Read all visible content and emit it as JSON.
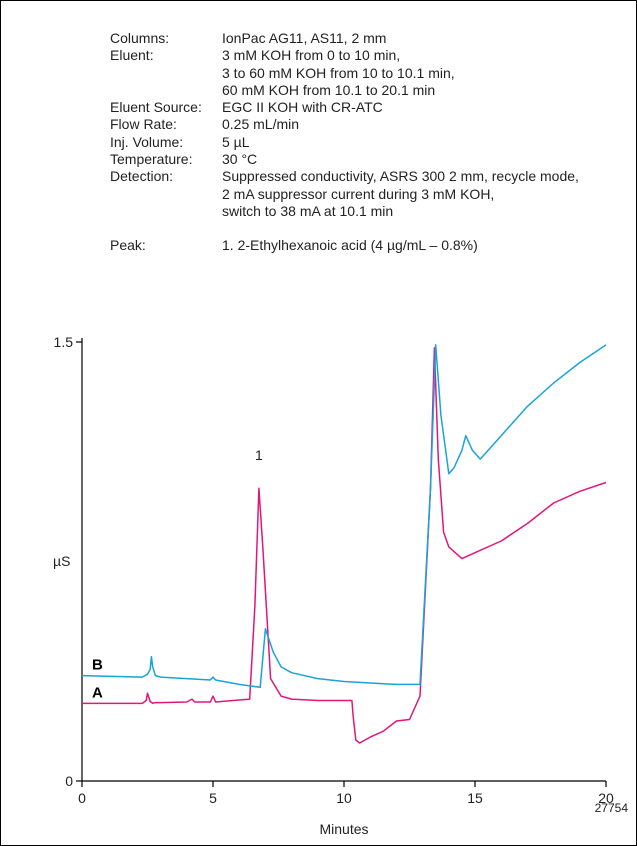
{
  "conditions": [
    {
      "label": "Columns:",
      "lines": [
        "IonPac AG11, AS11, 2 mm"
      ]
    },
    {
      "label": "Eluent:",
      "lines": [
        "3 mM KOH from 0 to 10 min,",
        "3 to 60 mM KOH from 10 to 10.1 min,",
        "60 mM KOH from 10.1 to 20.1 min"
      ]
    },
    {
      "label": "Eluent Source:",
      "lines": [
        "EGC II KOH with CR-ATC"
      ]
    },
    {
      "label": "Flow Rate:",
      "lines": [
        "0.25 mL/min"
      ]
    },
    {
      "label": "Inj. Volume:",
      "lines": [
        "5 µL"
      ]
    },
    {
      "label": "Temperature:",
      "lines": [
        "30 °C"
      ]
    },
    {
      "label": "Detection:",
      "lines": [
        "Suppressed conductivity, ASRS 300 2 mm, recycle mode,",
        "2 mA suppressor current during 3 mM KOH,",
        "switch to 38 mA at 10.1 min"
      ]
    }
  ],
  "peak": {
    "label": "Peak:",
    "text": "1. 2-Ethylhexanoic acid (4 µg/mL – 0.8%)"
  },
  "figure_id": "27754",
  "colors": {
    "trace_A": "#e0177a",
    "trace_B": "#1aa3d8",
    "axis": "#000000"
  },
  "chart_data": {
    "type": "line",
    "xlabel": "Minutes",
    "ylabel": "µS",
    "xlim": [
      0,
      20
    ],
    "ylim": [
      0,
      1.5
    ],
    "x_ticks": [
      "0",
      "5",
      "10",
      "15",
      "20"
    ],
    "y_ticks": [
      "0",
      "1.5"
    ],
    "peak_labels": [
      {
        "text": "1",
        "x": 6.75,
        "y": 1.07
      }
    ],
    "series": [
      {
        "name": "A",
        "color": "#e0177a",
        "x": [
          0,
          2.3,
          2.45,
          2.5,
          2.6,
          2.7,
          2.8,
          3.0,
          4.0,
          4.2,
          4.3,
          4.9,
          5.0,
          5.1,
          6.4,
          6.6,
          6.75,
          6.9,
          7.2,
          7.6,
          8.0,
          9.0,
          10.3,
          10.35,
          10.45,
          10.6,
          11.0,
          11.5,
          12.0,
          12.5,
          12.9,
          13.3,
          13.45,
          13.6,
          13.8,
          14.0,
          14.5,
          15.0,
          16.0,
          17.0,
          18.0,
          19.0,
          20.0
        ],
        "y": [
          0.265,
          0.265,
          0.275,
          0.3,
          0.272,
          0.266,
          0.268,
          0.268,
          0.27,
          0.28,
          0.27,
          0.27,
          0.29,
          0.27,
          0.28,
          0.6,
          1.0,
          0.8,
          0.35,
          0.29,
          0.28,
          0.275,
          0.275,
          0.22,
          0.14,
          0.13,
          0.15,
          0.17,
          0.205,
          0.21,
          0.29,
          1.0,
          1.48,
          1.1,
          0.85,
          0.8,
          0.76,
          0.78,
          0.82,
          0.88,
          0.95,
          0.99,
          1.02
        ]
      },
      {
        "name": "B",
        "color": "#1aa3d8",
        "x": [
          0,
          2.3,
          2.5,
          2.6,
          2.65,
          2.7,
          2.8,
          3.0,
          4.0,
          4.9,
          5.0,
          5.1,
          6.0,
          6.8,
          7.0,
          7.3,
          7.6,
          8.0,
          9.0,
          10.0,
          11.0,
          12.0,
          12.9,
          13.3,
          13.5,
          13.7,
          14.0,
          14.2,
          14.5,
          14.65,
          14.9,
          15.2,
          16.0,
          17.0,
          18.0,
          19.0,
          20.0
        ],
        "y": [
          0.36,
          0.355,
          0.365,
          0.38,
          0.425,
          0.39,
          0.36,
          0.355,
          0.35,
          0.345,
          0.355,
          0.345,
          0.33,
          0.32,
          0.52,
          0.44,
          0.39,
          0.37,
          0.35,
          0.34,
          0.335,
          0.33,
          0.33,
          1.0,
          1.49,
          1.25,
          1.05,
          1.07,
          1.13,
          1.18,
          1.13,
          1.1,
          1.18,
          1.28,
          1.36,
          1.43,
          1.49
        ]
      }
    ]
  }
}
